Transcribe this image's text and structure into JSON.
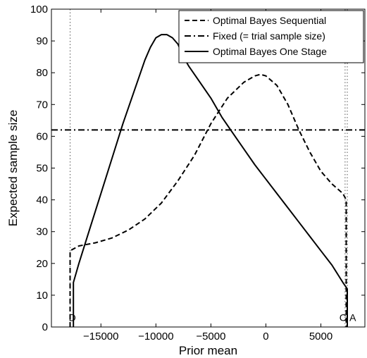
{
  "chart_data": {
    "type": "line",
    "xlabel": "Prior mean",
    "ylabel": "Expected sample size",
    "xlim": [
      -19500,
      9000
    ],
    "ylim": [
      0,
      100
    ],
    "xticks": [
      -15000,
      -10000,
      -5000,
      0,
      5000
    ],
    "xtick_labels": [
      "−15000",
      "−10000",
      "−5000",
      "0",
      "5000"
    ],
    "yticks": [
      0,
      10,
      20,
      30,
      40,
      50,
      60,
      70,
      80,
      90,
      100
    ],
    "ytick_labels": [
      "0",
      "10",
      "20",
      "30",
      "40",
      "50",
      "60",
      "70",
      "80",
      "90",
      "100"
    ],
    "grid": false,
    "legend_position": "top-right",
    "series": [
      {
        "name": "Optimal Bayes Sequential",
        "style": "dashed",
        "x": [
          -17800,
          -17800,
          -17000,
          -15500,
          -14000,
          -12500,
          -11000,
          -9500,
          -8000,
          -6500,
          -5000,
          -3500,
          -2000,
          -1000,
          -500,
          0,
          1000,
          2000,
          3000,
          4000,
          5000,
          6000,
          7000,
          7300,
          7300
        ],
        "y": [
          0,
          24,
          25.5,
          26.5,
          28,
          30.5,
          34,
          39,
          46,
          54,
          64,
          72,
          77,
          79,
          79.5,
          79,
          76,
          70,
          62,
          55,
          49,
          45,
          42,
          40,
          0
        ]
      },
      {
        "name": "Fixed (= trial sample size)",
        "style": "dashdot",
        "x": [
          -19500,
          9000
        ],
        "y": [
          62,
          62
        ]
      },
      {
        "name": "Optimal Bayes One Stage",
        "style": "solid",
        "x": [
          -17500,
          -17500,
          -17000,
          -16000,
          -15000,
          -14000,
          -13000,
          -12000,
          -11000,
          -10500,
          -10000,
          -9500,
          -9000,
          -8500,
          -8000,
          -7500,
          -7000,
          -6000,
          -5000,
          -4000,
          -3000,
          -2000,
          -1000,
          0,
          1000,
          2000,
          3000,
          4000,
          5000,
          6000,
          7000,
          7400,
          7400
        ],
        "y": [
          0,
          14,
          20,
          31,
          42,
          53,
          64,
          74,
          84,
          88,
          91,
          92,
          92,
          91,
          89,
          85,
          82,
          77,
          72,
          66,
          61,
          56,
          51,
          46.5,
          42,
          37.5,
          33,
          28.5,
          24,
          19.5,
          14,
          12,
          0
        ]
      }
    ],
    "vlines": [
      {
        "x": -17800,
        "style": "dotted"
      },
      {
        "x": 7200,
        "style": "dotted"
      },
      {
        "x": 7400,
        "style": "dotted"
      }
    ],
    "annotations": [
      {
        "text": "D",
        "x": -17600,
        "y": 3
      },
      {
        "text": "C",
        "x": 7000,
        "y": 3
      },
      {
        "text": "A",
        "x": 7900,
        "y": 3
      }
    ]
  }
}
